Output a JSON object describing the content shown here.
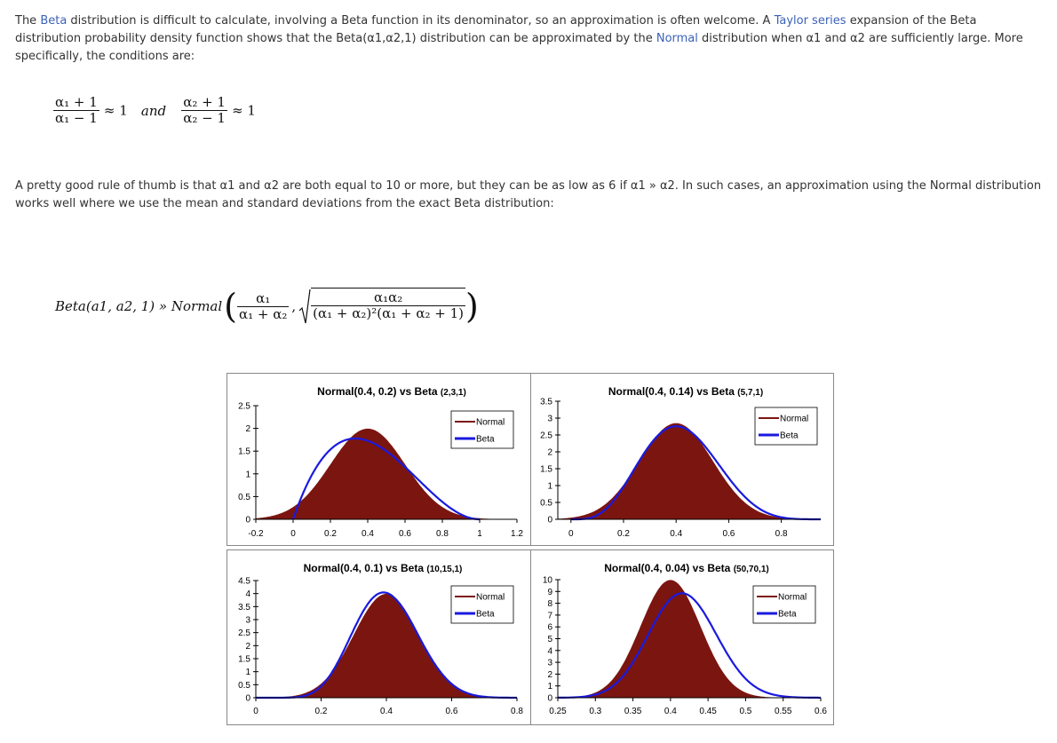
{
  "paragraph1": {
    "part1": "The ",
    "link1": "Beta",
    "part2": " distribution is difficult to calculate, involving a Beta function in its denominator, so an approximation is often welcome. A ",
    "link2": "Taylor series",
    "part3": " expansion of the Beta distribution probability density function shows that the Beta(α1,α2,1) distribution can be approximated by the ",
    "link3": "Normal",
    "part4": " distribution when α1 and α2 are sufficiently large. More specifically, the conditions are:"
  },
  "conditions": {
    "num1": "α₁ + 1",
    "den1": "α₁ − 1",
    "approx1": "≈ 1",
    "and": "and",
    "num2": "α₂ + 1",
    "den2": "α₂ − 1",
    "approx2": "≈ 1"
  },
  "paragraph2": {
    "text": "A pretty good rule of thumb is that α1 and α2 are both equal to 10 or more, but they can be as low as 6 if α1 » α2. In such cases, an approximation using the Normal distribution works well where we use the mean and standard deviations from the exact Beta distribution:"
  },
  "formula": {
    "lhs": "Beta(a1, a2, 1) » Normal",
    "mean_num": "α₁",
    "mean_den": "α₁ + α₂",
    "sd_num": "α₁α₂",
    "sd_den": "(α₁ + α₂)²(α₁ + α₂ + 1)"
  },
  "chart_data": [
    {
      "type": "area",
      "title": "Normal(0.4, 0.2) vs Beta",
      "title_params": "(2,3,1)",
      "xticks": [
        "-0.2",
        "0",
        "0.2",
        "0.4",
        "0.6",
        "0.8",
        "1",
        "1.2"
      ],
      "yticks": [
        "0",
        "0.5",
        "1",
        "1.5",
        "2",
        "2.5"
      ],
      "xlim": [
        -0.2,
        1.2
      ],
      "ylim": [
        0,
        2.5
      ],
      "beta": {
        "a1": 2,
        "a2": 3
      },
      "normal": {
        "mean": 0.4,
        "sd": 0.2
      },
      "series": [
        {
          "name": "Normal",
          "values": "Normal(0.4, 0.2) density",
          "color": "#7b1510"
        },
        {
          "name": "Beta",
          "values": "Beta(2,3) density on [0,1]",
          "color": "#1a1adf"
        }
      ]
    },
    {
      "type": "area",
      "title": "Normal(0.4, 0.14) vs Beta",
      "title_params": "(5,7,1)",
      "xticks": [
        "0",
        "0.2",
        "0.4",
        "0.6",
        "0.8"
      ],
      "yticks": [
        "0",
        "0.5",
        "1",
        "1.5",
        "2",
        "2.5",
        "3",
        "3.5"
      ],
      "xlim": [
        -0.05,
        0.95
      ],
      "ylim": [
        0,
        3.5
      ],
      "beta": {
        "a1": 5,
        "a2": 7
      },
      "normal": {
        "mean": 0.4,
        "sd": 0.14
      },
      "series": [
        {
          "name": "Normal",
          "values": "Normal(0.4, 0.14) density",
          "color": "#7b1510"
        },
        {
          "name": "Beta",
          "values": "Beta(5,7) density on [0,1]",
          "color": "#1a1adf"
        }
      ]
    },
    {
      "type": "area",
      "title": "Normal(0.4, 0.1) vs Beta",
      "title_params": "(10,15,1)",
      "xticks": [
        "0",
        "0.2",
        "0.4",
        "0.6",
        "0.8"
      ],
      "yticks": [
        "0",
        "0.5",
        "1",
        "1.5",
        "2",
        "2.5",
        "3",
        "3.5",
        "4",
        "4.5"
      ],
      "xlim": [
        0,
        0.8
      ],
      "ylim": [
        0,
        4.5
      ],
      "beta": {
        "a1": 10,
        "a2": 15
      },
      "normal": {
        "mean": 0.4,
        "sd": 0.1
      },
      "series": [
        {
          "name": "Normal",
          "values": "Normal(0.4, 0.1) density",
          "color": "#7b1510"
        },
        {
          "name": "Beta",
          "values": "Beta(10,15) density on [0,1]",
          "color": "#1a1adf"
        }
      ]
    },
    {
      "type": "area",
      "title": "Normal(0.4, 0.04) vs Beta",
      "title_params": "(50,70,1)",
      "xticks": [
        "0.25",
        "0.3",
        "0.35",
        "0.4",
        "0.45",
        "0.5",
        "0.55",
        "0.6"
      ],
      "yticks": [
        "0",
        "1",
        "2",
        "3",
        "4",
        "5",
        "6",
        "7",
        "8",
        "9",
        "10"
      ],
      "xlim": [
        0.25,
        0.6
      ],
      "ylim": [
        0,
        10
      ],
      "beta": {
        "a1": 50,
        "a2": 70
      },
      "normal": {
        "mean": 0.4,
        "sd": 0.04
      },
      "series": [
        {
          "name": "Normal",
          "values": "Normal(0.4, 0.04) density",
          "color": "#7b1510"
        },
        {
          "name": "Beta",
          "values": "Beta(50,70) density on [0,1]",
          "color": "#1a1adf"
        }
      ]
    }
  ]
}
